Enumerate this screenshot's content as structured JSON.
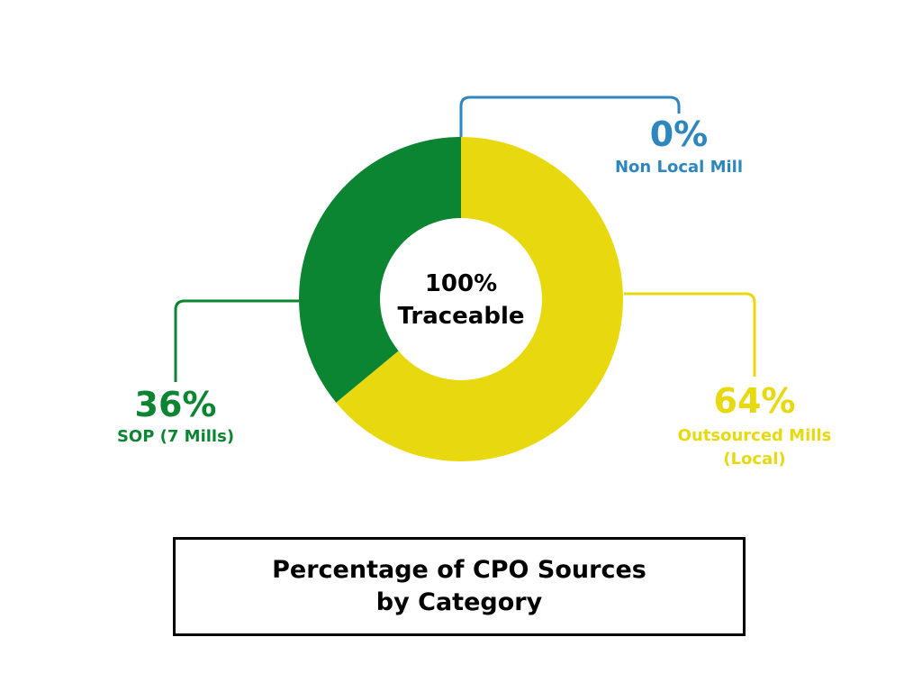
{
  "chart_data": {
    "type": "pie",
    "variant": "donut",
    "title": "Percentage of CPO Sources\nby Category",
    "center_label": [
      "100%",
      "Traceable"
    ],
    "slices": [
      {
        "key": "non_local",
        "label": [
          "Non Local Mill"
        ],
        "value": 0,
        "display": "0%",
        "color": "#2E86BF"
      },
      {
        "key": "outsourced",
        "label": [
          "Outsourced Mills",
          "(Local)"
        ],
        "value": 64,
        "display": "64%",
        "color": "#E8D90E"
      },
      {
        "key": "sop",
        "label": [
          "SOP (7 Mills)"
        ],
        "value": 36,
        "display": "36%",
        "color": "#0B8532"
      }
    ]
  }
}
